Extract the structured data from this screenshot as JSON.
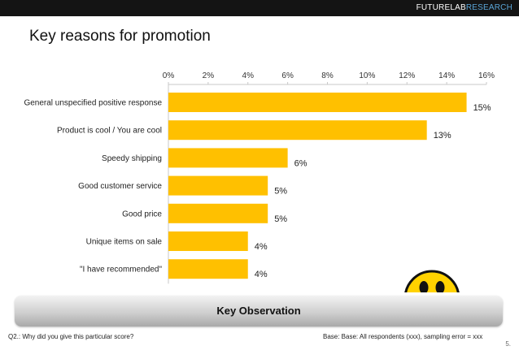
{
  "header": {
    "brand_primary": "FUTURELAB",
    "brand_accent": "RESEARCH"
  },
  "title": "Key reasons for promotion",
  "chart_data": {
    "type": "bar",
    "orientation": "horizontal",
    "categories": [
      "General unspecified positive response",
      "Product is cool / You are cool",
      "Speedy shipping",
      "Good customer service",
      "Good price",
      "Unique items on sale",
      "\"I have recommended\""
    ],
    "values": [
      15,
      13,
      6,
      5,
      5,
      4,
      4
    ],
    "value_labels": [
      "15%",
      "13%",
      "6%",
      "5%",
      "5%",
      "4%",
      "4%"
    ],
    "xlim": [
      0,
      16
    ],
    "ticks": [
      0,
      2,
      4,
      6,
      8,
      10,
      12,
      14,
      16
    ],
    "tick_labels": [
      "0%",
      "2%",
      "4%",
      "6%",
      "8%",
      "10%",
      "12%",
      "14%",
      "16%"
    ],
    "x_axis_position": "top",
    "grid": false,
    "legend": "none",
    "bar_color": "#FFC000"
  },
  "observation": {
    "label": "Key Observation"
  },
  "footer": {
    "question": "Q2.: Why did you give this particular score?",
    "base": "Base:  Base: All respondents (xxx), sampling error = xxx",
    "page": "5."
  },
  "decor": {
    "smiley": "smiley-face-icon"
  }
}
